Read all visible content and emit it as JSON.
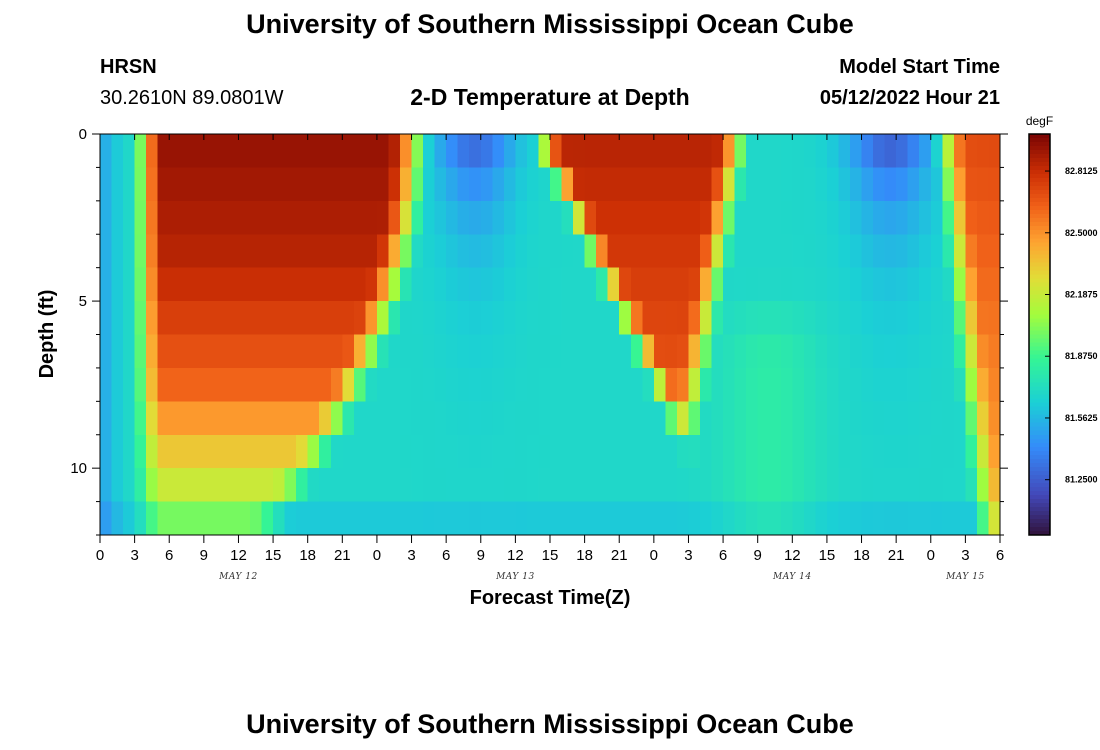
{
  "header": {
    "title": "University of Southern Mississippi Ocean Cube",
    "station": "HRSN",
    "coordinates": "30.2610N  89.0801W",
    "subtitle": "2-D Temperature at Depth",
    "model_start_label": "Model Start Time",
    "model_start_value": "05/12/2022 Hour 21"
  },
  "footer": {
    "title": "University of Southern Mississippi Ocean Cube"
  },
  "chart_data": {
    "type": "heatmap",
    "title": "2-D Temperature at Depth",
    "xlabel": "Forecast Time(Z)",
    "ylabel": "Depth (ft)",
    "x_hours_range": [
      0,
      78
    ],
    "y_depth_range": [
      0,
      12
    ],
    "y_ticks": [
      0,
      5,
      10
    ],
    "x_tick_labels": [
      "0",
      "3",
      "6",
      "9",
      "12",
      "15",
      "18",
      "21",
      "0",
      "3",
      "6",
      "9",
      "12",
      "15",
      "18",
      "21",
      "0",
      "3",
      "6",
      "9",
      "12",
      "15",
      "18",
      "21",
      "0",
      "3",
      "6"
    ],
    "date_labels": [
      {
        "label": "MAY 12",
        "hour": 12
      },
      {
        "label": "MAY 13",
        "hour": 36
      },
      {
        "label": "MAY 14",
        "hour": 60
      },
      {
        "label": "MAY 15",
        "hour": 75
      }
    ],
    "colorbar": {
      "unit": "degF",
      "min": 80.97,
      "max": 83.0,
      "ticks": [
        "82.8125",
        "82.5000",
        "82.1875",
        "81.8750",
        "81.5625",
        "81.2500"
      ]
    },
    "warm_events": [
      {
        "start_hour": 2.5,
        "end_hour": 30,
        "peak_surface_degF": 83.0,
        "note": "warm surface water May 12"
      },
      {
        "start_hour": 38,
        "end_hour": 55.5,
        "peak_surface_degF": 82.6,
        "note": "warm surface water May 13"
      },
      {
        "start_hour": 72.5,
        "end_hour": 78,
        "peak_surface_degF": 82.4,
        "note": "warming May 15"
      }
    ],
    "cool_minima": [
      {
        "hour": 33,
        "depth_ft": 0,
        "degF": 81.0
      },
      {
        "hour": 69,
        "depth_ft": 0,
        "degF": 81.0
      }
    ]
  }
}
